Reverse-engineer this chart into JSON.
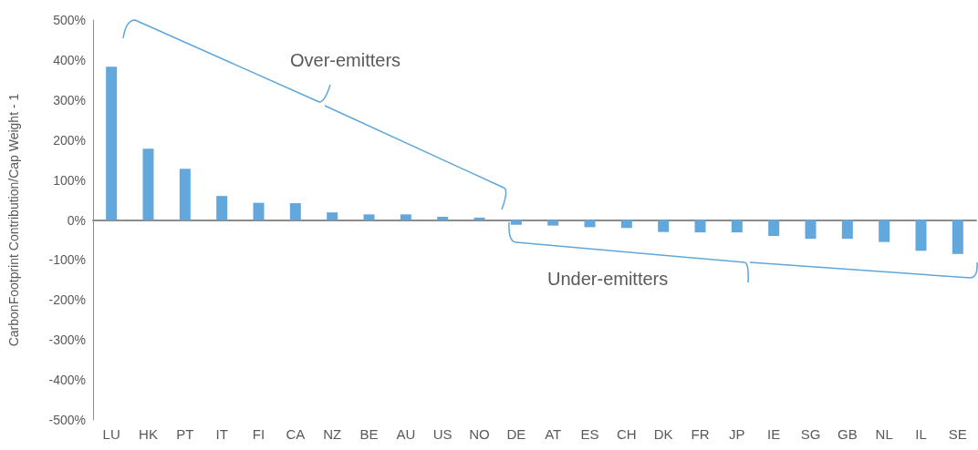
{
  "chart_data": {
    "type": "bar",
    "ylabel": "CarbonFootprint Contribution/Cap Weight - 1",
    "categories": [
      "LU",
      "HK",
      "PT",
      "IT",
      "FI",
      "CA",
      "NZ",
      "BE",
      "AU",
      "US",
      "NO",
      "DE",
      "AT",
      "ES",
      "CH",
      "DK",
      "FR",
      "JP",
      "IE",
      "SG",
      "GB",
      "NL",
      "IL",
      "SE"
    ],
    "values": [
      383,
      178,
      128,
      60,
      43,
      42,
      19,
      14,
      14,
      8,
      6,
      -12,
      -14,
      -18,
      -20,
      -30,
      -31,
      -31,
      -40,
      -47,
      -47,
      -55,
      -77,
      -85
    ],
    "color": "#62a8dd",
    "ylim": [
      -500,
      500
    ],
    "yticks": [
      {
        "value": -500,
        "label": "-500%"
      },
      {
        "value": -400,
        "label": "-400%"
      },
      {
        "value": -300,
        "label": "-300%"
      },
      {
        "value": -200,
        "label": "-200%"
      },
      {
        "value": -100,
        "label": "-100%"
      },
      {
        "value": 0,
        "label": "0%"
      },
      {
        "value": 100,
        "label": "100%"
      },
      {
        "value": 200,
        "label": "200%"
      },
      {
        "value": 300,
        "label": "300%"
      },
      {
        "value": 400,
        "label": "400%"
      },
      {
        "value": 500,
        "label": "500%"
      }
    ],
    "annotations": [
      "Over-emitters",
      "Under-emitters"
    ]
  }
}
